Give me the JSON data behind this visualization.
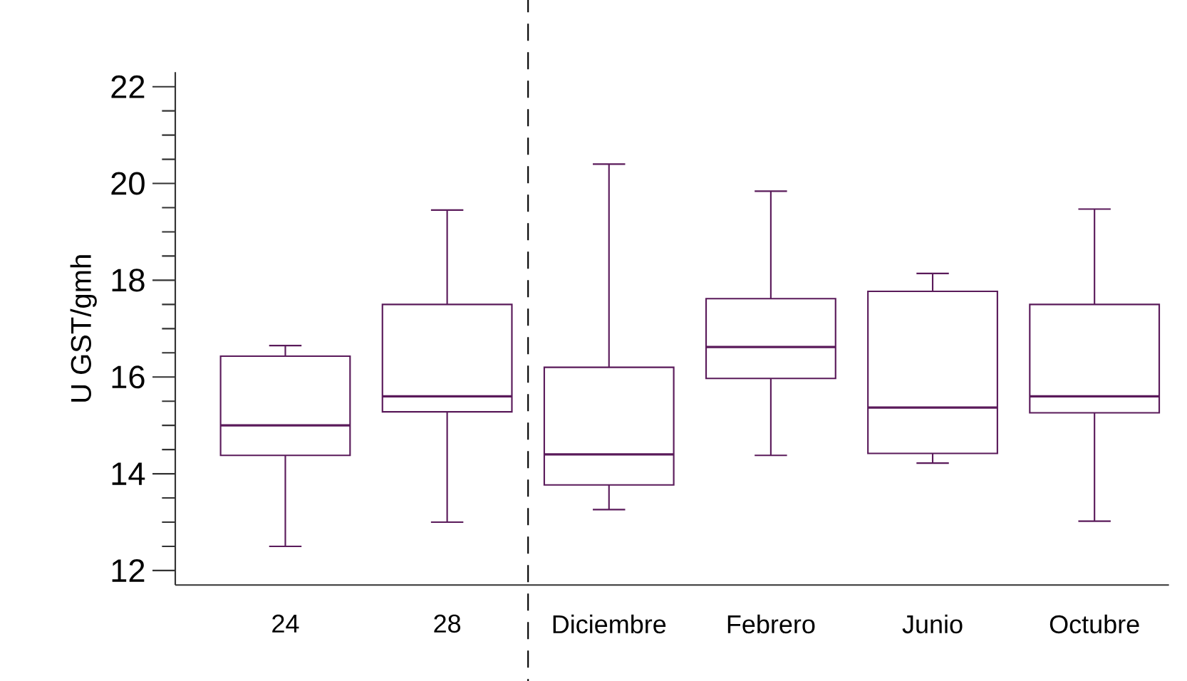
{
  "chart_data": {
    "type": "box",
    "ylabel": "U GST/gmh",
    "categories": [
      "24",
      "28",
      "Diciembre",
      "Febrero",
      "Junio",
      "Octubre"
    ],
    "boxes": [
      {
        "low": 12.5,
        "q1": 14.38,
        "median": 15.0,
        "q3": 16.43,
        "high": 16.65
      },
      {
        "low": 13.0,
        "q1": 15.28,
        "median": 15.6,
        "q3": 17.5,
        "high": 19.45
      },
      {
        "low": 13.26,
        "q1": 13.77,
        "median": 14.4,
        "q3": 16.2,
        "high": 20.4
      },
      {
        "low": 14.38,
        "q1": 15.97,
        "median": 16.62,
        "q3": 17.62,
        "high": 19.84
      },
      {
        "low": 14.22,
        "q1": 14.42,
        "median": 15.37,
        "q3": 17.77,
        "high": 18.14
      },
      {
        "low": 13.02,
        "q1": 15.26,
        "median": 15.6,
        "q3": 17.5,
        "high": 19.47
      }
    ],
    "color": "#5a1a5a",
    "ylim": [
      11.7,
      22.3
    ],
    "yticks": [
      12,
      14,
      16,
      18,
      20,
      22
    ],
    "grid": false
  }
}
